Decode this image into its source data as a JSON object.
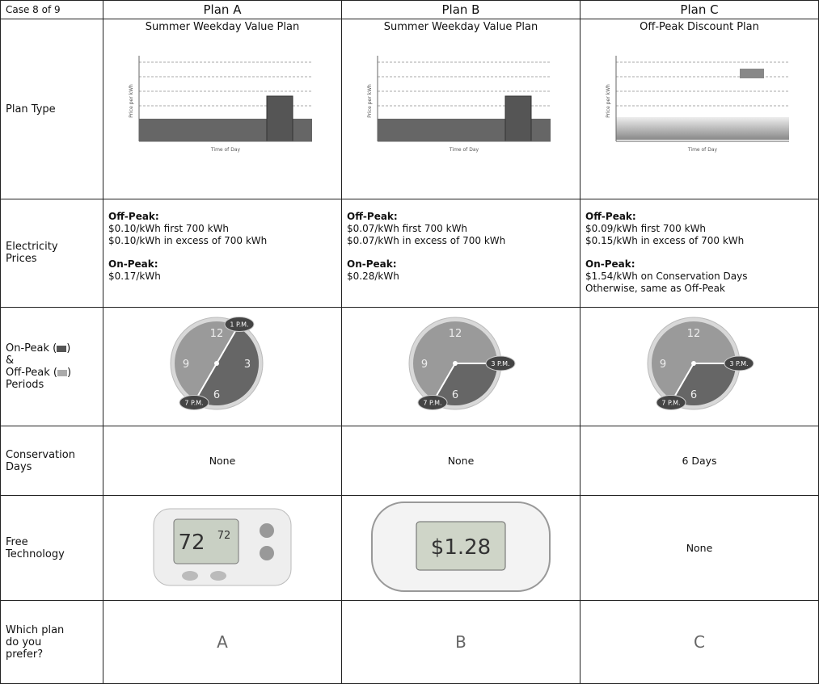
{
  "header": {
    "case": "Case 8 of 9",
    "plans": [
      "Plan A",
      "Plan B",
      "Plan C"
    ]
  },
  "plan_type": {
    "label": "Plan Type",
    "plans": [
      {
        "name": "Summer Weekday Value Plan",
        "y_label": "Price per kWh",
        "x_label": "Time of Day"
      },
      {
        "name": "Summer Weekday Value Plan",
        "y_label": "Price per kWh",
        "x_label": "Time of Day"
      },
      {
        "name": "Off-Peak Discount Plan",
        "y_label": "Price per kWh",
        "x_label": "Time of Day"
      }
    ]
  },
  "electricity": {
    "label": [
      "Electricity",
      "Prices"
    ],
    "plans": [
      {
        "off_peak_heading": "Off-Peak:",
        "off_peak": [
          "$0.10/kWh first 700 kWh",
          "$0.10/kWh in excess of 700 kWh"
        ],
        "on_peak_heading": "On-Peak:",
        "on_peak": [
          "$0.17/kWh"
        ]
      },
      {
        "off_peak_heading": "Off-Peak:",
        "off_peak": [
          "$0.07/kWh first 700 kWh",
          "$0.07/kWh in excess of 700 kWh"
        ],
        "on_peak_heading": "On-Peak:",
        "on_peak": [
          "$0.28/kWh"
        ]
      },
      {
        "off_peak_heading": "Off-Peak:",
        "off_peak": [
          "$0.09/kWh first 700 kWh",
          "$0.15/kWh in excess of 700 kWh"
        ],
        "on_peak_heading": "On-Peak:",
        "on_peak": [
          "$1.54/kWh on Conservation Days",
          "Otherwise, same as Off-Peak"
        ]
      }
    ]
  },
  "periods": {
    "label": [
      {
        "pre": "On-Peak (",
        "post": ")"
      },
      {
        "pre": "&"
      },
      {
        "pre": "Off-Peak (",
        "post": ")"
      },
      {
        "pre": "Periods"
      }
    ],
    "plans": [
      {
        "numbers": [
          "12",
          "9",
          "3",
          "6"
        ],
        "start": "1 P.M.",
        "end": "7 P.M."
      },
      {
        "numbers": [
          "12",
          "9",
          "6"
        ],
        "start": "3 P.M.",
        "end": "7 P.M."
      },
      {
        "numbers": [
          "12",
          "9",
          "6"
        ],
        "start": "3 P.M.",
        "end": "7 P.M."
      }
    ]
  },
  "conservation": {
    "label": [
      "Conservation",
      "Days"
    ],
    "plans": [
      "None",
      "None",
      "6 Days"
    ]
  },
  "technology": {
    "label": [
      "Free",
      "Technology"
    ],
    "thermostat": [
      "72",
      "72"
    ],
    "display": "$1.28",
    "none": "None"
  },
  "prefer": {
    "label": [
      "Which plan",
      "do you",
      "prefer?"
    ],
    "options": [
      "A",
      "B",
      "C"
    ]
  }
}
